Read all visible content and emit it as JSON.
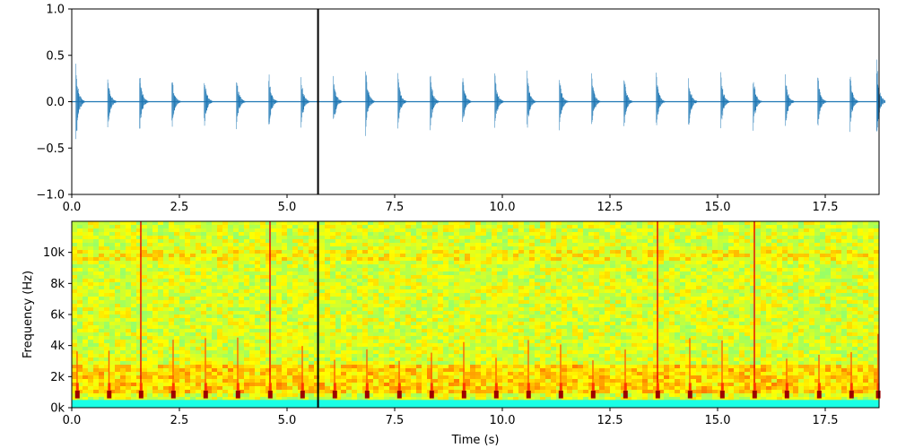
{
  "chart_data": [
    {
      "type": "line",
      "name": "waveform",
      "title": "",
      "xlabel": "",
      "ylabel": "",
      "xlim": [
        0,
        18.75
      ],
      "ylim": [
        -1.0,
        1.0
      ],
      "xticks": [
        0.0,
        2.5,
        5.0,
        7.5,
        10.0,
        12.5,
        15.0,
        17.5
      ],
      "xtick_labels": [
        "0.0",
        "2.5",
        "5.0",
        "7.5",
        "10.0",
        "12.5",
        "15.0",
        "17.5"
      ],
      "yticks": [
        1.0,
        0.5,
        0.0,
        -0.5,
        -1.0
      ],
      "ytick_labels": [
        "1.0",
        "0.5",
        "0.0",
        "−0.5",
        "−1.0"
      ],
      "series": [
        {
          "name": "amplitude",
          "color": "#1f77b4",
          "baseline": 0.0,
          "pulse_times": [
            0.12,
            0.86,
            1.6,
            2.35,
            3.1,
            3.85,
            4.6,
            5.35,
            6.1,
            6.85,
            7.6,
            8.35,
            9.1,
            9.85,
            10.6,
            11.35,
            12.1,
            12.85,
            13.6,
            14.35,
            15.1,
            15.85,
            16.6,
            17.35,
            18.1,
            18.72
          ],
          "pulse_peak_pos": [
            0.42,
            0.33,
            0.36,
            0.31,
            0.33,
            0.33,
            0.36,
            0.3,
            0.33,
            0.47,
            0.33,
            0.34,
            0.33,
            0.34,
            0.34,
            0.32,
            0.32,
            0.33,
            0.32,
            0.32,
            0.33,
            0.32,
            0.33,
            0.32,
            0.33,
            0.48
          ],
          "pulse_peak_neg": [
            -0.52,
            -0.33,
            -0.35,
            -0.32,
            -0.32,
            -0.33,
            -0.34,
            -0.31,
            -0.33,
            -0.38,
            -0.33,
            -0.33,
            -0.32,
            -0.34,
            -0.33,
            -0.32,
            -0.32,
            -0.33,
            -0.32,
            -0.32,
            -0.34,
            -0.32,
            -0.33,
            -0.32,
            -0.34,
            -0.4
          ]
        }
      ],
      "cursor_time": 5.72,
      "cursor_color": "#000000"
    },
    {
      "type": "heatmap",
      "name": "spectrogram",
      "title": "",
      "xlabel": "Time (s)",
      "ylabel": "Frequency (Hz)",
      "xlim": [
        0,
        18.75
      ],
      "ylim": [
        0,
        12000
      ],
      "xticks": [
        0.0,
        2.5,
        5.0,
        7.5,
        10.0,
        12.5,
        15.0,
        17.5
      ],
      "xtick_labels": [
        "0.0",
        "2.5",
        "5.0",
        "7.5",
        "10.0",
        "12.5",
        "15.0",
        "17.5"
      ],
      "yticks": [
        0,
        2000,
        4000,
        6000,
        8000,
        10000
      ],
      "ytick_labels": [
        "0k",
        "2k",
        "4k",
        "6k",
        "8k",
        "10k"
      ],
      "colormap": "jet",
      "event_times": [
        0.12,
        0.86,
        1.6,
        2.35,
        3.1,
        3.85,
        4.6,
        5.35,
        6.1,
        6.85,
        7.6,
        8.35,
        9.1,
        9.85,
        10.6,
        11.35,
        12.1,
        12.85,
        13.6,
        14.35,
        15.1,
        15.85,
        16.6,
        17.35,
        18.1,
        18.72
      ],
      "strong_events": [
        1.6,
        4.6,
        13.6,
        15.85
      ],
      "low_band_hz": [
        0,
        1000
      ],
      "noise_band_hz": [
        1000,
        12000
      ],
      "cursor_time": 5.72,
      "cursor_color": "#000000"
    }
  ]
}
